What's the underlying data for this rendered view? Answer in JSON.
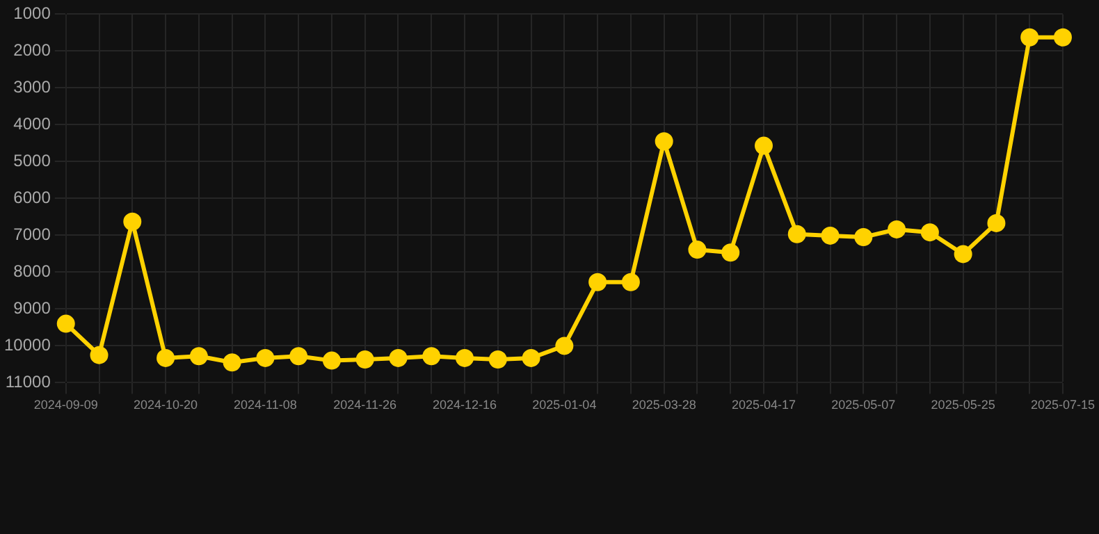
{
  "chart_data": {
    "type": "line",
    "categories": [
      "2024-09-09",
      null,
      null,
      "2024-10-20",
      null,
      null,
      "2024-11-08",
      null,
      null,
      "2024-11-26",
      null,
      null,
      "2024-12-16",
      null,
      null,
      "2025-01-04",
      null,
      null,
      "2025-03-28",
      null,
      null,
      "2025-04-17",
      null,
      null,
      "2025-05-07",
      null,
      null,
      "2025-05-25",
      null,
      null,
      "2025-07-15"
    ],
    "series": [
      {
        "color": "#ffd200",
        "values": [
          9400,
          10250,
          6630,
          10330,
          10280,
          10450,
          10330,
          10280,
          10400,
          10370,
          10330,
          10280,
          10330,
          10370,
          10330,
          10000,
          8270,
          8270,
          4450,
          7390,
          7470,
          4570,
          6970,
          7010,
          7050,
          6840,
          6920,
          7510,
          6670,
          1630,
          1630
        ]
      }
    ],
    "ylim": [
      11000,
      1000
    ],
    "yticks": [
      1000,
      2000,
      3000,
      4000,
      5000,
      6000,
      7000,
      8000,
      9000,
      10000,
      11000
    ],
    "grid": true,
    "marker": "circle",
    "line_style": "solid"
  }
}
